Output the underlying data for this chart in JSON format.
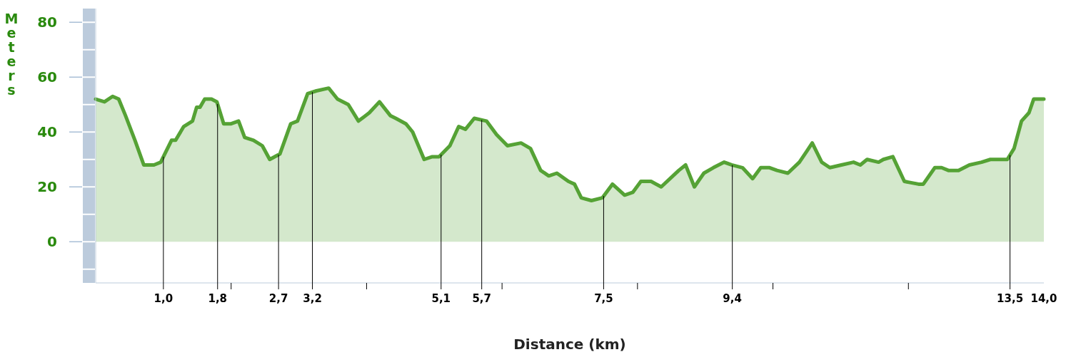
{
  "chart_data": {
    "type": "area",
    "xlabel": "Distance (km)",
    "ylabel": "Meters",
    "xlim": [
      0,
      14
    ],
    "ylim": [
      -15,
      85
    ],
    "xticks": [
      {
        "value": 1.0,
        "label": "1,0"
      },
      {
        "value": 1.8,
        "label": "1,8"
      },
      {
        "value": 2.7,
        "label": "2,7"
      },
      {
        "value": 3.2,
        "label": "3,2"
      },
      {
        "value": 5.1,
        "label": "5,1"
      },
      {
        "value": 5.7,
        "label": "5,7"
      },
      {
        "value": 7.5,
        "label": "7,5"
      },
      {
        "value": 9.4,
        "label": "9,4"
      },
      {
        "value": 13.5,
        "label": "13,5"
      },
      {
        "value": 14.0,
        "label": "14,0"
      },
      {
        "value": 2,
        "label": null
      },
      {
        "value": 4,
        "label": null
      },
      {
        "value": 6,
        "label": null
      },
      {
        "value": 8,
        "label": null
      },
      {
        "value": 10,
        "label": null
      },
      {
        "value": 12,
        "label": null
      }
    ],
    "yticks": [
      0,
      20,
      40,
      60,
      80
    ],
    "x": [
      0,
      0.13,
      0.25,
      0.34,
      0.44,
      0.58,
      0.71,
      0.86,
      0.96,
      1.12,
      1.18,
      1.3,
      1.43,
      1.49,
      1.54,
      1.61,
      1.71,
      1.79,
      1.89,
      2,
      2.11,
      2.2,
      2.33,
      2.46,
      2.57,
      2.72,
      2.88,
      2.98,
      3.13,
      3.26,
      3.44,
      3.57,
      3.73,
      3.88,
      4.04,
      4.19,
      4.35,
      4.43,
      4.58,
      4.68,
      4.85,
      4.97,
      5.07,
      5.23,
      5.36,
      5.46,
      5.59,
      5.77,
      5.92,
      6.08,
      6.28,
      6.42,
      6.57,
      6.69,
      6.81,
      6.98,
      7.07,
      7.17,
      7.32,
      7.48,
      7.63,
      7.81,
      7.93,
      8.05,
      8.2,
      8.35,
      8.61,
      8.71,
      8.84,
      8.98,
      9.12,
      9.28,
      9.39,
      9.55,
      9.7,
      9.82,
      9.95,
      10.06,
      10.22,
      10.39,
      10.5,
      10.58,
      10.72,
      10.84,
      11.01,
      11.19,
      11.29,
      11.39,
      11.56,
      11.63,
      11.77,
      11.94,
      12.15,
      12.22,
      12.39,
      12.49,
      12.59,
      12.74,
      12.9,
      13.08,
      13.21,
      13.46,
      13.56,
      13.67,
      13.78,
      13.85,
      14
    ],
    "series": [
      {
        "color": "#55a235",
        "values": [
          52,
          51,
          53,
          52,
          46,
          37,
          28,
          28,
          29,
          37,
          37,
          42,
          44,
          49,
          49,
          52,
          52,
          51,
          43,
          43,
          44,
          38,
          37,
          35,
          30,
          32,
          43,
          44,
          54,
          55,
          56,
          52,
          50,
          44,
          47,
          51,
          46,
          45,
          43,
          40,
          30,
          31,
          31,
          35,
          42,
          41,
          45,
          44,
          39,
          35,
          36,
          34,
          26,
          24,
          25,
          22,
          21,
          16,
          15,
          16,
          21,
          17,
          18,
          22,
          22,
          20,
          26,
          28,
          20,
          25,
          27,
          29,
          28,
          27,
          23,
          27,
          27,
          26,
          25,
          29,
          33,
          36,
          29,
          27,
          28,
          29,
          28,
          30,
          29,
          30,
          31,
          22,
          21,
          21,
          27,
          27,
          26,
          26,
          28,
          29,
          30,
          30,
          34,
          44,
          47,
          52,
          52
        ]
      }
    ],
    "ref_lines": [
      {
        "axis": "x",
        "value": 1.0
      },
      {
        "axis": "x",
        "value": 1.8
      },
      {
        "axis": "x",
        "value": 2.7
      },
      {
        "axis": "x",
        "value": 3.2
      },
      {
        "axis": "x",
        "value": 5.1
      },
      {
        "axis": "x",
        "value": 5.7
      },
      {
        "axis": "x",
        "value": 7.5
      },
      {
        "axis": "x",
        "value": 9.4
      },
      {
        "axis": "x",
        "value": 13.5
      }
    ],
    "grid": false
  }
}
